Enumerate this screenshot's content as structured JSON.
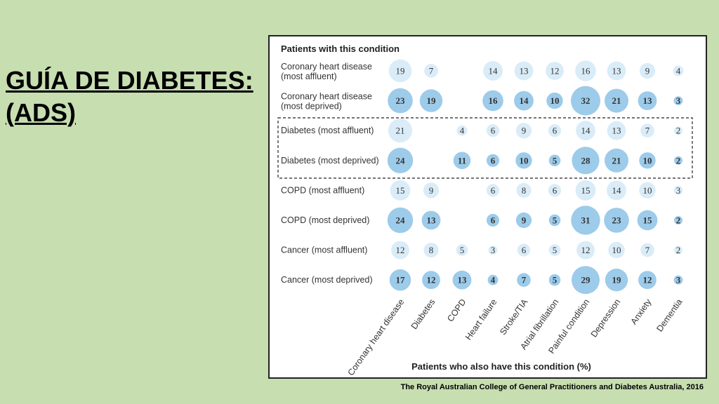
{
  "slide": {
    "title_line1": "GUÍA DE DIABETES:",
    "title_line2": "(ADS)",
    "source": "The Royal Australian College of General Practitioners and Diabetes Australia, 2016"
  },
  "colors": {
    "background": "#c7deb1",
    "bubble": "#9dcbea",
    "bubble_light": "#d9ecf8",
    "highlight_box": "#222222"
  },
  "chart_data": {
    "type": "heatmap",
    "title": "Patients with this condition",
    "xlabel": "Patients who also have this condition (%)",
    "columns": [
      "Coronary heart disease",
      "Diabetes",
      "COPD",
      "Heart failure",
      "Stroke/TIA",
      "Atrial fibrillation",
      "Painful condition",
      "Depression",
      "Anxiety",
      "Dementia"
    ],
    "rows": [
      {
        "label_line1": "Coronary heart disease",
        "label_line2": "(most affluent)",
        "group": "affluent",
        "values": [
          19,
          7,
          null,
          14,
          13,
          12,
          16,
          13,
          9,
          4
        ]
      },
      {
        "label_line1": "Coronary heart disease",
        "label_line2": "(most deprived)",
        "group": "deprived",
        "values": [
          23,
          19,
          null,
          16,
          14,
          10,
          32,
          21,
          13,
          3
        ]
      },
      {
        "label_line1": "Diabetes (most affluent)",
        "label_line2": "",
        "group": "affluent",
        "values": [
          21,
          null,
          4,
          6,
          9,
          6,
          14,
          13,
          7,
          2
        ]
      },
      {
        "label_line1": "Diabetes (most deprived)",
        "label_line2": "",
        "group": "deprived",
        "values": [
          24,
          null,
          11,
          6,
          10,
          5,
          28,
          21,
          10,
          2
        ]
      },
      {
        "label_line1": "COPD (most affluent)",
        "label_line2": "",
        "group": "affluent",
        "values": [
          15,
          9,
          null,
          6,
          8,
          6,
          15,
          14,
          10,
          3
        ]
      },
      {
        "label_line1": "COPD (most deprived)",
        "label_line2": "",
        "group": "deprived",
        "values": [
          24,
          13,
          null,
          6,
          9,
          5,
          31,
          23,
          15,
          2
        ]
      },
      {
        "label_line1": "Cancer (most affluent)",
        "label_line2": "",
        "group": "affluent",
        "values": [
          12,
          8,
          5,
          3,
          6,
          5,
          12,
          10,
          7,
          2
        ]
      },
      {
        "label_line1": "Cancer (most deprived)",
        "label_line2": "",
        "group": "deprived",
        "values": [
          17,
          12,
          13,
          4,
          7,
          5,
          29,
          19,
          12,
          3
        ]
      }
    ],
    "highlighted_rows": [
      "Diabetes (most affluent)",
      "Diabetes (most deprived)"
    ],
    "legend": "none",
    "grid": false
  }
}
